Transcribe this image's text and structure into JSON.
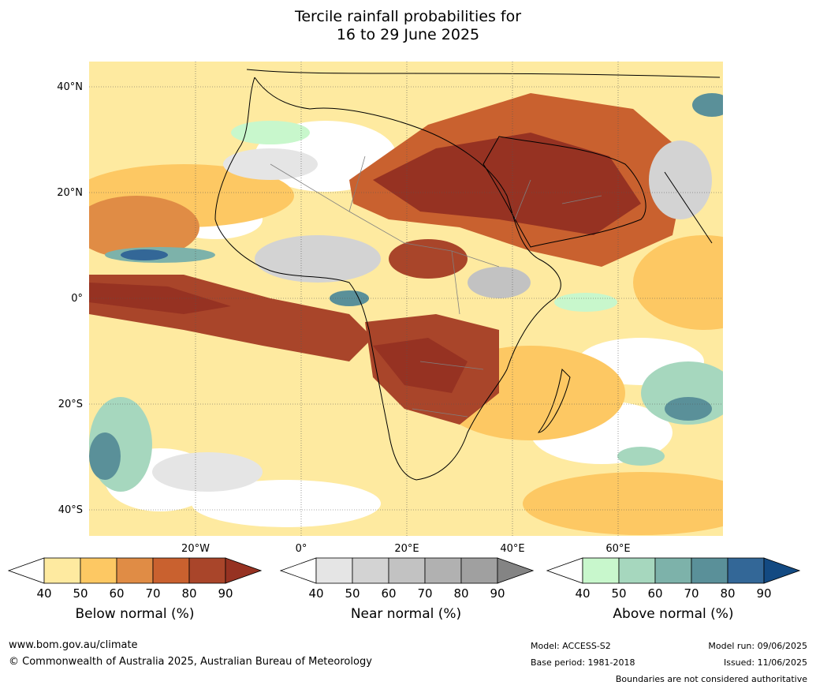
{
  "title": {
    "line1": "Tercile rainfall probabilities for",
    "line2": "16 to 29 June 2025"
  },
  "map": {
    "lat_labels": [
      "40°N",
      "20°N",
      "0°",
      "20°S",
      "40°S"
    ],
    "lon_labels": [
      "20°W",
      "0°",
      "20°E",
      "40°E",
      "60°E"
    ],
    "ocean_color": "#ffffff",
    "land_border_color": "#000000",
    "country_border_color": "#808080"
  },
  "colorbars": [
    {
      "title": "Below normal (%)",
      "ticks": [
        "40",
        "50",
        "60",
        "70",
        "80",
        "90"
      ],
      "colors": [
        "#ffffff",
        "#feeaa0",
        "#fdc863",
        "#e08c45",
        "#c9612f",
        "#a9452a",
        "#963222"
      ]
    },
    {
      "title": "Near normal (%)",
      "ticks": [
        "40",
        "50",
        "60",
        "70",
        "80",
        "90"
      ],
      "colors": [
        "#ffffff",
        "#e5e5e5",
        "#d3d3d3",
        "#c2c2c2",
        "#b1b1b1",
        "#a0a0a0",
        "#848484"
      ]
    },
    {
      "title": "Above normal (%)",
      "ticks": [
        "40",
        "50",
        "60",
        "70",
        "80",
        "90"
      ],
      "colors": [
        "#ffffff",
        "#c8f7cc",
        "#a6d7be",
        "#7db2aa",
        "#5a9099",
        "#336797",
        "#134a82"
      ]
    }
  ],
  "footer": {
    "website": "www.bom.gov.au/climate",
    "copyright": "© Commonwealth of Australia 2025, Australian Bureau of Meteorology",
    "model": "Model: ACCESS-S2",
    "model_run": "Model run: 09/06/2025",
    "base_period": "Base period: 1981-2018",
    "issued": "Issued: 11/06/2025",
    "disclaimer": "Boundaries are not considered authoritative"
  }
}
